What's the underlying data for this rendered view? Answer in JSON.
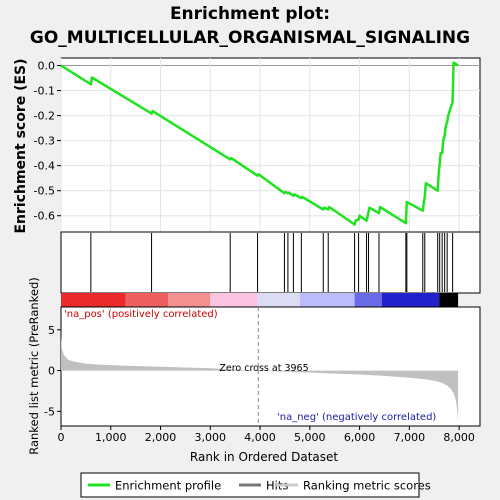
{
  "chart_data": {
    "type": "line",
    "title_line1": "Enrichment plot:",
    "title_line2": "GO_MULTICELLULAR_ORGANISMAL_SIGNALING",
    "es_panel": {
      "ylabel": "Enrichment score (ES)",
      "ylim": [
        -0.665,
        0.03
      ],
      "yticks": [
        0.0,
        -0.1,
        -0.2,
        -0.3,
        -0.4,
        -0.5,
        -0.6
      ],
      "ytick_labels": [
        "0.0",
        "-0.1",
        "-0.2",
        "-0.3",
        "-0.4",
        "-0.5",
        "-0.6"
      ],
      "series": [
        {
          "name": "Enrichment profile",
          "x": [
            0,
            600,
            620,
            1820,
            1840,
            3400,
            3420,
            3950,
            3970,
            4490,
            4510,
            4560,
            4580,
            4670,
            4690,
            4830,
            4850,
            5270,
            5290,
            5370,
            5390,
            5900,
            5920,
            5980,
            6000,
            6140,
            6160,
            6180,
            6200,
            6390,
            6410,
            6930,
            6950,
            7270,
            7290,
            7310,
            7330,
            7570,
            7590,
            7610,
            7630,
            7660,
            7680,
            7710,
            7730,
            7760,
            7780,
            7870,
            7890,
            7980
          ],
          "y": [
            0.0,
            -0.075,
            -0.048,
            -0.192,
            -0.182,
            -0.375,
            -0.37,
            -0.44,
            -0.435,
            -0.51,
            -0.505,
            -0.51,
            -0.508,
            -0.52,
            -0.515,
            -0.53,
            -0.525,
            -0.575,
            -0.568,
            -0.575,
            -0.565,
            -0.635,
            -0.62,
            -0.615,
            -0.6,
            -0.62,
            -0.605,
            -0.585,
            -0.568,
            -0.59,
            -0.565,
            -0.63,
            -0.545,
            -0.58,
            -0.545,
            -0.525,
            -0.47,
            -0.5,
            -0.43,
            -0.39,
            -0.35,
            -0.35,
            -0.3,
            -0.28,
            -0.245,
            -0.225,
            -0.2,
            -0.145,
            0.012,
            0.0
          ]
        }
      ]
    },
    "hits": [
      600,
      1820,
      3400,
      3950,
      4490,
      4560,
      4670,
      4830,
      5270,
      5370,
      5900,
      5980,
      6140,
      6180,
      6390,
      6930,
      6950,
      7270,
      7310,
      7570,
      7610,
      7660,
      7710,
      7760,
      7870
    ],
    "rank_bar": {
      "colors": [
        "#ea2a2a",
        "#f05f5f",
        "#f39191",
        "#fbc4e0",
        "#dcdcf4",
        "#bcbcfa",
        "#6a6ae8",
        "#2222cc"
      ],
      "breaks": [
        0,
        1300,
        2150,
        3000,
        3950,
        4800,
        5900,
        6450,
        7600,
        7980
      ]
    },
    "metric_panel": {
      "ylabel": "Ranked list metric (PreRanked)",
      "ylim": [
        -6.8,
        7.8
      ],
      "yticks": [
        5,
        0,
        -5
      ],
      "ytick_labels": [
        "5",
        "0",
        "-5"
      ],
      "label_pos": "'na_pos' (positively correlated)",
      "label_neg": "'na_neg' (negatively correlated)",
      "zero_cross_label": "Zero cross at 3965",
      "zero_cross": 3965,
      "metric_x": [
        0,
        20,
        60,
        150,
        300,
        500,
        800,
        1200,
        2000,
        3000,
        3965,
        5000,
        6000,
        6500,
        7000,
        7300,
        7500,
        7650,
        7750,
        7830,
        7880,
        7920,
        7950,
        7970,
        7980
      ],
      "metric_y": [
        4.2,
        2.6,
        1.9,
        1.3,
        1.05,
        0.85,
        0.72,
        0.62,
        0.48,
        0.28,
        0.0,
        -0.25,
        -0.48,
        -0.65,
        -0.88,
        -1.05,
        -1.25,
        -1.5,
        -1.8,
        -2.2,
        -2.7,
        -3.3,
        -4.2,
        -5.5,
        -6.2
      ]
    },
    "x_axis": {
      "xlabel": "Rank in Ordered Dataset",
      "xlim": [
        0,
        8420
      ],
      "xticks": [
        0,
        1000,
        2000,
        3000,
        4000,
        5000,
        6000,
        7000,
        8000
      ],
      "xtick_labels": [
        "0",
        "1,000",
        "2,000",
        "3,000",
        "4,000",
        "5,000",
        "6,000",
        "7,000",
        "8,000"
      ]
    },
    "legend": {
      "placement": "bottom",
      "items": [
        "Enrichment profile",
        "Hits",
        "Ranking metric scores"
      ],
      "colors": [
        "#1fe31f",
        "#777777",
        "#cccccc"
      ]
    }
  }
}
